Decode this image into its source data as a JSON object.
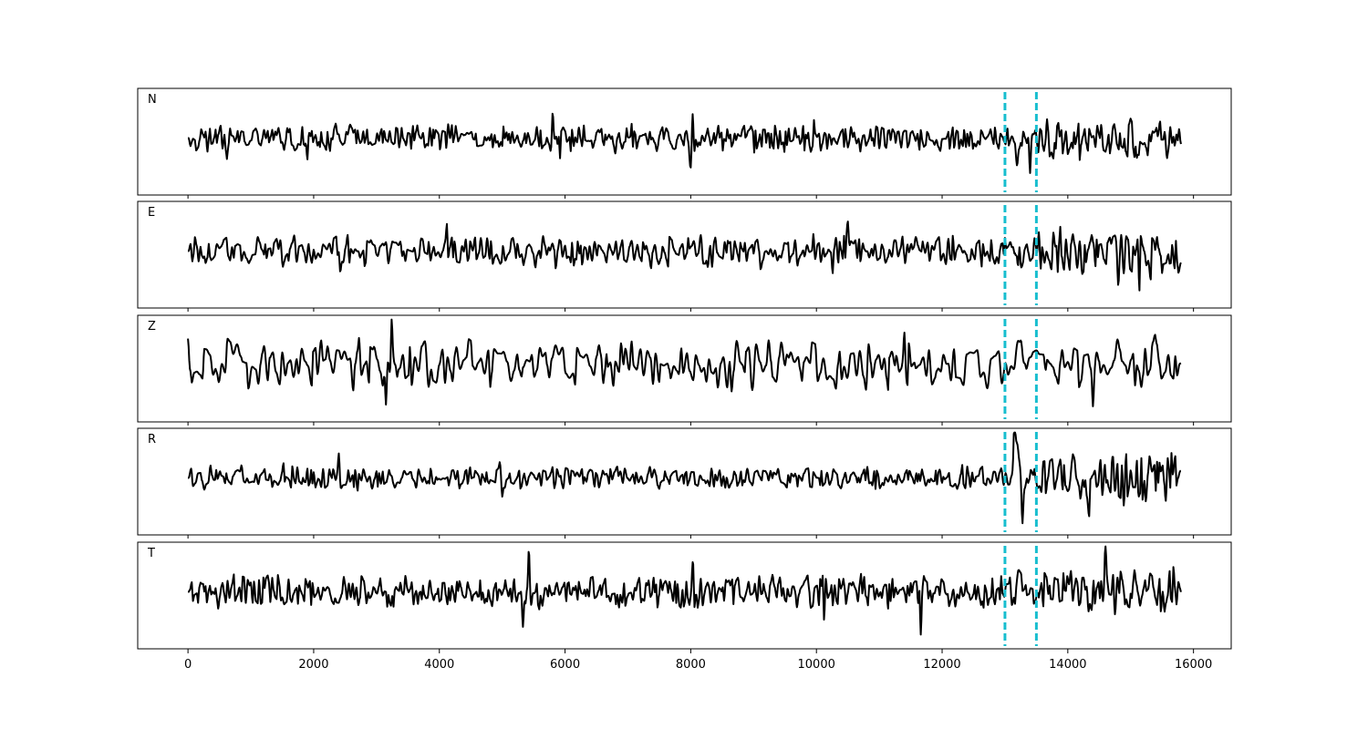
{
  "chart_data": {
    "type": "line",
    "title": "",
    "xlabel": "",
    "ylabel": "",
    "xlim": [
      -800,
      16600
    ],
    "x_ticks": [
      0,
      2000,
      4000,
      6000,
      8000,
      10000,
      12000,
      14000,
      16000
    ],
    "x_tick_labels": [
      "0",
      "2000",
      "4000",
      "6000",
      "8000",
      "10000",
      "12000",
      "14000",
      "16000"
    ],
    "sample_count": 15800,
    "marker_lines": {
      "x": [
        13000,
        13500
      ],
      "color": "#17becf",
      "style": "dashed"
    },
    "trace_color": "#000000",
    "grid": false,
    "panels": [
      {
        "label": "N",
        "amplitude": 0.3,
        "wavelength": 55,
        "event": {
          "x": 13200,
          "amplitude": 0.45
        },
        "late_amplitude": 0.45,
        "spikes": [
          {
            "x": 5800,
            "value": 0.55
          },
          {
            "x": 8000,
            "value": -0.7
          },
          {
            "x": 8030,
            "value": 0.5
          },
          {
            "x": 1900,
            "value": -0.5
          },
          {
            "x": 15100,
            "value": -0.75
          },
          {
            "x": 13400,
            "value": -0.85
          }
        ]
      },
      {
        "label": "E",
        "amplitude": 0.35,
        "wavelength": 65,
        "event": {
          "x": 13200,
          "amplitude": 0.7
        },
        "late_amplitude": 0.6,
        "spikes": [
          {
            "x": 2420,
            "value": -0.55
          },
          {
            "x": 4120,
            "value": 0.55
          },
          {
            "x": 10500,
            "value": 0.45
          },
          {
            "x": 13230,
            "value": 0.65
          },
          {
            "x": 14800,
            "value": -0.75
          }
        ]
      },
      {
        "label": "Z",
        "amplitude": 0.55,
        "wavelength": 100,
        "event": {
          "x": 13300,
          "amplitude": 0.5
        },
        "late_amplitude": 0.55,
        "spikes": [
          {
            "x": 0,
            "value": 0.55
          },
          {
            "x": 3240,
            "value": 0.7
          },
          {
            "x": 3150,
            "value": -0.85
          },
          {
            "x": 11400,
            "value": 0.6
          },
          {
            "x": 14400,
            "value": -0.7
          }
        ]
      },
      {
        "label": "R",
        "amplitude": 0.25,
        "wavelength": 65,
        "event": {
          "x": 13200,
          "amplitude": 0.75
        },
        "late_amplitude": 0.55,
        "spikes": [
          {
            "x": 2400,
            "value": 0.4
          },
          {
            "x": 5000,
            "value": -0.35
          },
          {
            "x": 13150,
            "value": 0.85
          },
          {
            "x": 13280,
            "value": -0.75
          },
          {
            "x": 14720,
            "value": 0.75
          },
          {
            "x": 15100,
            "value": 0.8
          }
        ]
      },
      {
        "label": "T",
        "amplitude": 0.35,
        "wavelength": 55,
        "event": {
          "x": 13200,
          "amplitude": 0.4
        },
        "late_amplitude": 0.5,
        "spikes": [
          {
            "x": 5420,
            "value": 0.85
          },
          {
            "x": 8040,
            "value": 0.9
          },
          {
            "x": 8060,
            "value": -0.7
          },
          {
            "x": 11660,
            "value": -0.8
          },
          {
            "x": 14600,
            "value": 0.9
          },
          {
            "x": 5330,
            "value": -0.6
          }
        ]
      }
    ]
  }
}
